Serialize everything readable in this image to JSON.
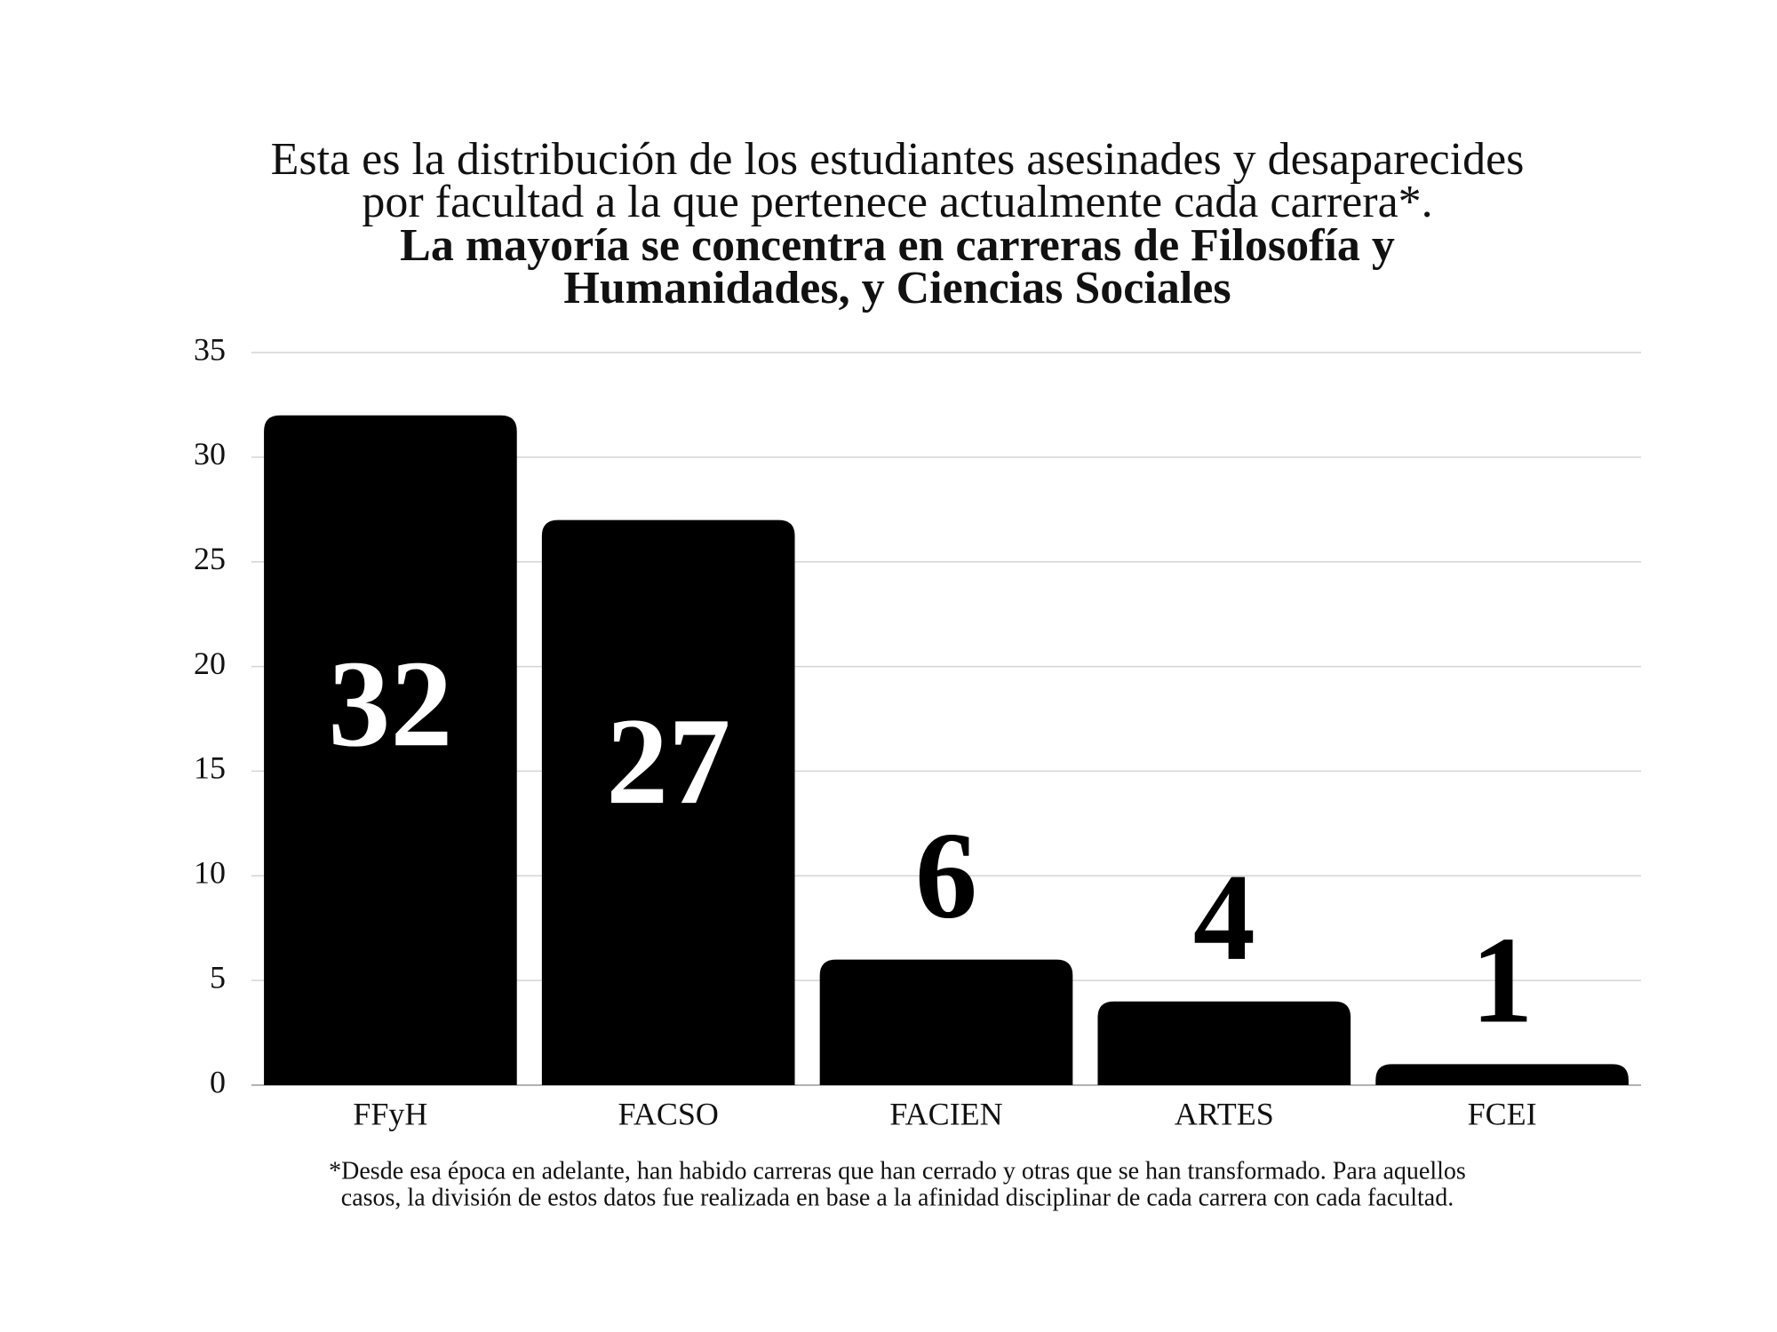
{
  "chart_data": {
    "type": "bar",
    "title": [
      "Esta es la distribución de los estudiantes asesinades y desaparecides",
      "por facultad a la que pertenece actualmente cada carrera*."
    ],
    "subtitle": [
      "La mayoría se concentra en carreras de Filosofía y",
      "Humanidades, y Ciencias Sociales"
    ],
    "footnote": [
      "*Desde esa época en adelante, han habido carreras que han cerrado y otras que se han transformado. Para aquellos",
      "casos, la división de estos datos fue realizada en base a la afinidad disciplinar de cada carrera con cada facultad."
    ],
    "categories": [
      "FFyH",
      "FACSO",
      "FACIEN",
      "ARTES",
      "FCEI"
    ],
    "values": [
      32,
      27,
      6,
      4,
      1
    ],
    "color": "#000000",
    "ylim": [
      0,
      35
    ],
    "yticks": [
      0,
      5,
      10,
      15,
      20,
      25,
      30,
      35
    ],
    "grid": true
  }
}
